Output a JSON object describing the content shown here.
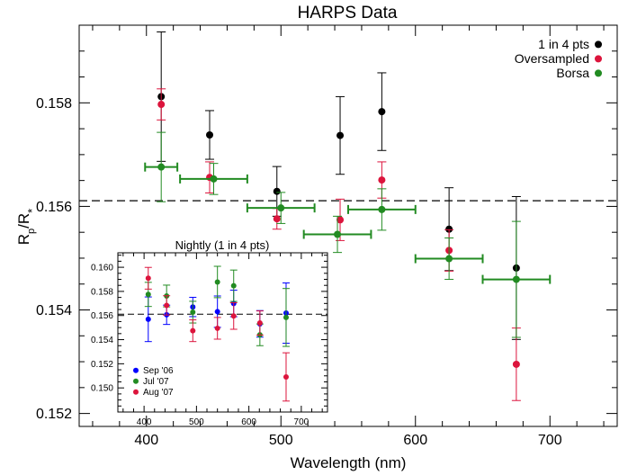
{
  "chart_data": [
    {
      "type": "scatter",
      "title": "HARPS Data",
      "xlabel": "Wavelength (nm)",
      "ylabel": "R_p/R_*",
      "xlim": [
        350,
        750
      ],
      "ylim": [
        0.15175,
        0.1595
      ],
      "xticks": [
        400,
        500,
        600,
        700
      ],
      "yticks": [
        0.152,
        0.154,
        0.156,
        0.158
      ],
      "ytick_labels": [
        "0.152",
        "0.154",
        "0.156",
        "0.158"
      ],
      "reference_line": {
        "y": 0.15611,
        "style": "dashed"
      },
      "legend_position": "top-right",
      "grid": false,
      "series": [
        {
          "name": "1 in 4 pts",
          "color": "#000000",
          "points": [
            {
              "x": 411,
              "y": 0.15812,
              "yerr": 0.00125
            },
            {
              "x": 447,
              "y": 0.15738,
              "yerr": 0.00047
            },
            {
              "x": 497,
              "y": 0.15629,
              "yerr": 0.00048
            },
            {
              "x": 544,
              "y": 0.15737,
              "yerr": 0.00075
            },
            {
              "x": 575,
              "y": 0.15783,
              "yerr": 0.00075
            },
            {
              "x": 625,
              "y": 0.15556,
              "yerr": 0.0008
            },
            {
              "x": 675,
              "y": 0.15481,
              "yerr": 0.00138
            }
          ]
        },
        {
          "name": "Oversampled",
          "color": "#dc143c",
          "points": [
            {
              "x": 411,
              "y": 0.15797,
              "yerr": 0.0003
            },
            {
              "x": 447,
              "y": 0.15656,
              "yerr": 0.0003
            },
            {
              "x": 497,
              "y": 0.15576,
              "yerr": 0.0002
            },
            {
              "x": 544,
              "y": 0.15574,
              "yerr": 0.0004
            },
            {
              "x": 575,
              "y": 0.15651,
              "yerr": 0.00035
            },
            {
              "x": 625,
              "y": 0.15515,
              "yerr": 0.0004
            },
            {
              "x": 675,
              "y": 0.15295,
              "yerr": 0.0007
            }
          ]
        },
        {
          "name": "Borsa",
          "color": "#228b22",
          "points": [
            {
              "x": 411,
              "y": 0.15676,
              "xerr": 12,
              "yerr": 0.00067
            },
            {
              "x": 450,
              "y": 0.15653,
              "xerr": 25,
              "yerr": 0.0003
            },
            {
              "x": 500,
              "y": 0.15597,
              "xerr": 25,
              "yerr": 0.0003
            },
            {
              "x": 542,
              "y": 0.15546,
              "xerr": 25,
              "yerr": 0.00035
            },
            {
              "x": 575,
              "y": 0.15594,
              "xerr": 25,
              "yerr": 0.0004
            },
            {
              "x": 625,
              "y": 0.15499,
              "xerr": 25,
              "yerr": 0.0004
            },
            {
              "x": 675,
              "y": 0.15459,
              "xerr": 25,
              "yerr": 0.00112
            }
          ]
        }
      ]
    },
    {
      "type": "scatter",
      "title": "Nightly (1 in 4 pts)",
      "xlim": [
        350,
        750
      ],
      "ylim": [
        0.148,
        0.1612
      ],
      "xticks": [
        400,
        500,
        600,
        700
      ],
      "yticks": [
        0.15,
        0.152,
        0.154,
        0.156,
        0.158,
        0.16
      ],
      "ytick_labels": [
        "0.150",
        "0.152",
        "0.154",
        "0.156",
        "0.158",
        "0.160"
      ],
      "reference_line": {
        "y": 0.15611,
        "style": "dashed"
      },
      "legend_position": "bottom-left",
      "grid": false,
      "series": [
        {
          "name": "Sep '06",
          "color": "#0000ff",
          "points": [
            {
              "x": 408,
              "y": 0.15569,
              "yerr": 0.00185
            },
            {
              "x": 443,
              "y": 0.15606,
              "yerr": 0.0008
            },
            {
              "x": 493,
              "y": 0.15671,
              "yerr": 0.0008
            },
            {
              "x": 540,
              "y": 0.15632,
              "yerr": 0.0013
            },
            {
              "x": 571,
              "y": 0.157,
              "yerr": 0.0011
            },
            {
              "x": 621,
              "y": 0.15531,
              "yerr": 0.0011
            },
            {
              "x": 671,
              "y": 0.1562,
              "yerr": 0.0025
            }
          ]
        },
        {
          "name": "Jul '07",
          "color": "#228b22",
          "points": [
            {
              "x": 408,
              "y": 0.15775,
              "yerr": 0.001
            },
            {
              "x": 443,
              "y": 0.15762,
              "yerr": 0.0009
            },
            {
              "x": 493,
              "y": 0.15628,
              "yerr": 0.0009
            },
            {
              "x": 540,
              "y": 0.15878,
              "yerr": 0.0013
            },
            {
              "x": 571,
              "y": 0.15847,
              "yerr": 0.0013
            },
            {
              "x": 621,
              "y": 0.1544,
              "yerr": 0.0009
            },
            {
              "x": 671,
              "y": 0.15584,
              "yerr": 0.0024
            }
          ]
        },
        {
          "name": "Aug '07",
          "color": "#dc143c",
          "points": [
            {
              "x": 408,
              "y": 0.15909,
              "yerr": 0.0009
            },
            {
              "x": 443,
              "y": 0.15684,
              "yerr": 0.0008
            },
            {
              "x": 493,
              "y": 0.15474,
              "yerr": 0.0009
            },
            {
              "x": 540,
              "y": 0.15494,
              "yerr": 0.0009
            },
            {
              "x": 571,
              "y": 0.15596,
              "yerr": 0.0011
            },
            {
              "x": 621,
              "y": 0.15538,
              "yerr": 0.001
            },
            {
              "x": 671,
              "y": 0.15091,
              "yerr": 0.002
            }
          ]
        }
      ]
    }
  ]
}
